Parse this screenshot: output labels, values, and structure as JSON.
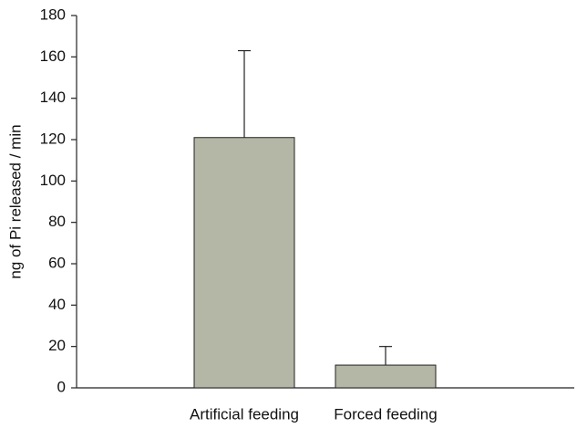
{
  "chart_data": {
    "type": "bar",
    "y_label": "ng of Pi released / min",
    "categories": [
      "Artificial feeding",
      "Forced feeding"
    ],
    "values": [
      121,
      11
    ],
    "errors": [
      42,
      9
    ],
    "color": "#b4b6a6",
    "ylim": [
      0,
      180
    ],
    "yticks": [
      0,
      20,
      40,
      60,
      80,
      100,
      120,
      140,
      160,
      180
    ]
  }
}
